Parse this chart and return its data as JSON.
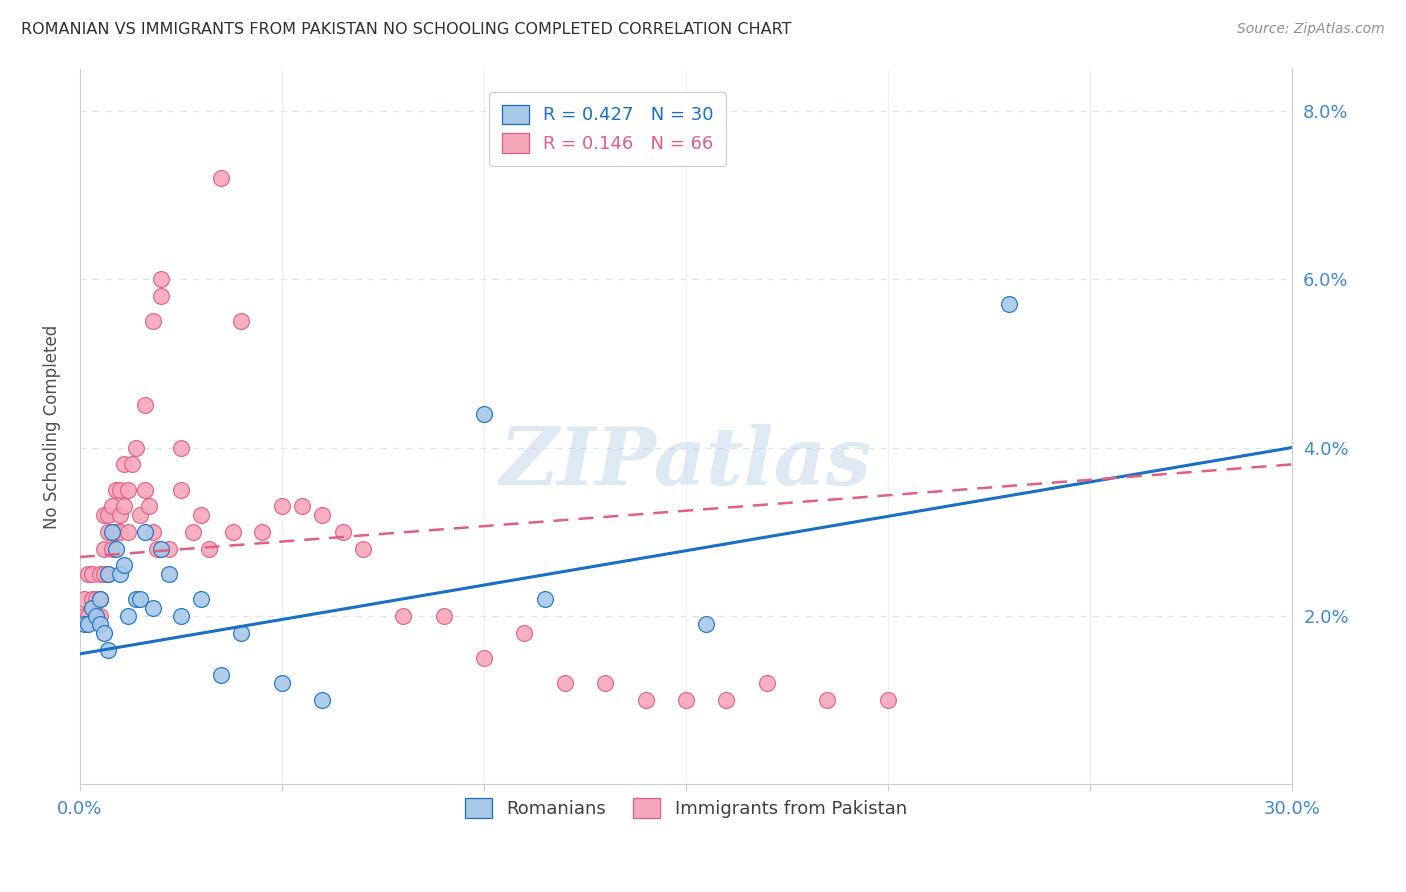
{
  "title": "ROMANIAN VS IMMIGRANTS FROM PAKISTAN NO SCHOOLING COMPLETED CORRELATION CHART",
  "source": "Source: ZipAtlas.com",
  "ylabel": "No Schooling Completed",
  "xlim": [
    0.0,
    0.3
  ],
  "ylim": [
    0.0,
    0.085
  ],
  "xticks": [
    0.0,
    0.05,
    0.1,
    0.15,
    0.2,
    0.25,
    0.3
  ],
  "xtick_labels": [
    "0.0%",
    "",
    "",
    "",
    "",
    "",
    "30.0%"
  ],
  "yticks": [
    0.0,
    0.02,
    0.04,
    0.06,
    0.08
  ],
  "ytick_labels": [
    "",
    "2.0%",
    "4.0%",
    "6.0%",
    "8.0%"
  ],
  "romanian_R": 0.427,
  "romanian_N": 30,
  "pakistan_R": 0.146,
  "pakistan_N": 66,
  "romanian_color": "#a8c8e8",
  "pakistan_color": "#f5a8bc",
  "romanian_line_color": "#1a6fc4",
  "pakistan_line_color": "#e06080",
  "tick_color": "#4488cc",
  "grid_color": "#d8e4f0",
  "title_color": "#303030",
  "source_color": "#909090",
  "watermark": "ZIPatlas",
  "romanians_x": [
    0.001,
    0.002,
    0.003,
    0.004,
    0.005,
    0.005,
    0.006,
    0.007,
    0.007,
    0.008,
    0.009,
    0.01,
    0.011,
    0.012,
    0.014,
    0.015,
    0.016,
    0.018,
    0.02,
    0.022,
    0.025,
    0.03,
    0.035,
    0.04,
    0.05,
    0.06,
    0.1,
    0.115,
    0.155,
    0.23
  ],
  "romanians_y": [
    0.019,
    0.019,
    0.021,
    0.02,
    0.019,
    0.022,
    0.018,
    0.016,
    0.025,
    0.03,
    0.028,
    0.025,
    0.026,
    0.02,
    0.022,
    0.022,
    0.03,
    0.021,
    0.028,
    0.025,
    0.02,
    0.022,
    0.013,
    0.018,
    0.012,
    0.01,
    0.044,
    0.022,
    0.019,
    0.057
  ],
  "pakistan_x": [
    0.001,
    0.001,
    0.002,
    0.002,
    0.003,
    0.003,
    0.004,
    0.004,
    0.005,
    0.005,
    0.005,
    0.006,
    0.006,
    0.006,
    0.007,
    0.007,
    0.007,
    0.008,
    0.008,
    0.009,
    0.009,
    0.01,
    0.01,
    0.01,
    0.011,
    0.011,
    0.012,
    0.012,
    0.013,
    0.014,
    0.015,
    0.016,
    0.016,
    0.017,
    0.018,
    0.018,
    0.019,
    0.02,
    0.02,
    0.022,
    0.025,
    0.025,
    0.028,
    0.03,
    0.032,
    0.035,
    0.038,
    0.04,
    0.045,
    0.05,
    0.055,
    0.06,
    0.065,
    0.07,
    0.08,
    0.09,
    0.1,
    0.11,
    0.12,
    0.13,
    0.14,
    0.15,
    0.16,
    0.17,
    0.185,
    0.2
  ],
  "pakistan_y": [
    0.02,
    0.022,
    0.02,
    0.025,
    0.022,
    0.025,
    0.02,
    0.022,
    0.02,
    0.022,
    0.025,
    0.025,
    0.028,
    0.032,
    0.025,
    0.03,
    0.032,
    0.028,
    0.033,
    0.03,
    0.035,
    0.03,
    0.032,
    0.035,
    0.033,
    0.038,
    0.03,
    0.035,
    0.038,
    0.04,
    0.032,
    0.035,
    0.045,
    0.033,
    0.03,
    0.055,
    0.028,
    0.06,
    0.058,
    0.028,
    0.035,
    0.04,
    0.03,
    0.032,
    0.028,
    0.072,
    0.03,
    0.055,
    0.03,
    0.033,
    0.033,
    0.032,
    0.03,
    0.028,
    0.02,
    0.02,
    0.015,
    0.018,
    0.012,
    0.012,
    0.01,
    0.01,
    0.01,
    0.012,
    0.01,
    0.01
  ],
  "rom_line_x0": 0.0,
  "rom_line_y0": 0.0155,
  "rom_line_x1": 0.3,
  "rom_line_y1": 0.04,
  "pak_line_x0": 0.0,
  "pak_line_y0": 0.027,
  "pak_line_x1": 0.3,
  "pak_line_y1": 0.038
}
